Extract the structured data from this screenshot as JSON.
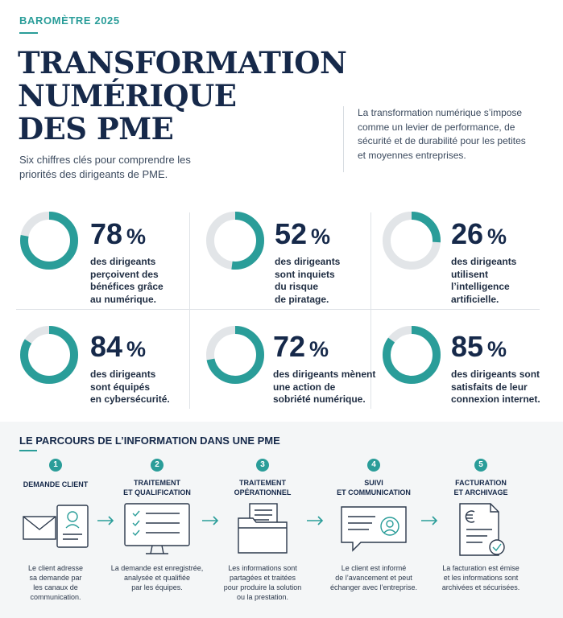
{
  "header": {
    "kicker": "BAROMÈTRE 2025",
    "title_lines": [
      "TRANSFORMATION",
      "NUMÉRIQUE",
      "DES PME"
    ],
    "subtitle": "Six chiffres clés pour comprendre les priorités des dirigeants de PME.",
    "intro": "La transformation numérique s’impose comme un levier de performance, de sécurité et de durabilité pour les petites et moyennes entreprises."
  },
  "colors": {
    "accent": "#2a9d99",
    "track": "#e2e5e8",
    "navy": "#16294a"
  },
  "stats": [
    {
      "value": 78,
      "value_label": "78",
      "unit": "%",
      "desc": "des dirigeants\nperçoivent des\nbénéfices grâce\nau numérique."
    },
    {
      "value": 52,
      "value_label": "52",
      "unit": "%",
      "desc": "des dirigeants\nsont inquiets\ndu risque\nde piratage."
    },
    {
      "value": 26,
      "value_label": "26",
      "unit": "%",
      "desc": "des dirigeants\nutilisent\nl’intelligence\nartificielle."
    },
    {
      "value": 84,
      "value_label": "84",
      "unit": "%",
      "desc": "des dirigeants\nsont équipés\nen cybersécurité."
    },
    {
      "value": 72,
      "value_label": "72",
      "unit": "%",
      "desc": "des dirigeants mènent\nune action de\nsobriété numérique."
    },
    {
      "value": 85,
      "value_label": "85",
      "unit": "%",
      "desc": "des dirigeants sont\nsatisfaits de leur\nconnexion internet."
    }
  ],
  "process": {
    "title": "LE PARCOURS DE L’INFORMATION DANS UNE PME",
    "steps": [
      {
        "num": "1",
        "title": "DEMANDE CLIENT",
        "icon": "mail-profile-icon",
        "text": "Le client adresse\nsa demande par\nles canaux de\ncommunication."
      },
      {
        "num": "2",
        "title": "TRAITEMENT\nET QUALIFICATION",
        "icon": "checklist-monitor-icon",
        "text": "La demande est enregistrée,\nanalysée et qualifiée\npar les équipes."
      },
      {
        "num": "3",
        "title": "TRAITEMENT\nOPÉRATIONNEL",
        "icon": "folder-document-icon",
        "text": "Les informations sont\npartagées et traitées\npour produire la solution\nou la prestation."
      },
      {
        "num": "4",
        "title": "SUIVI\nET COMMUNICATION",
        "icon": "message-profile-icon",
        "text": "Le client est informé\nde l’avancement et peut\néchanger avec l’entreprise."
      },
      {
        "num": "5",
        "title": "FACTURATION\nET ARCHIVAGE",
        "icon": "invoice-euro-icon",
        "text": "La facturation est émise\net les informations sont\narchivées et sécurisées."
      }
    ]
  }
}
